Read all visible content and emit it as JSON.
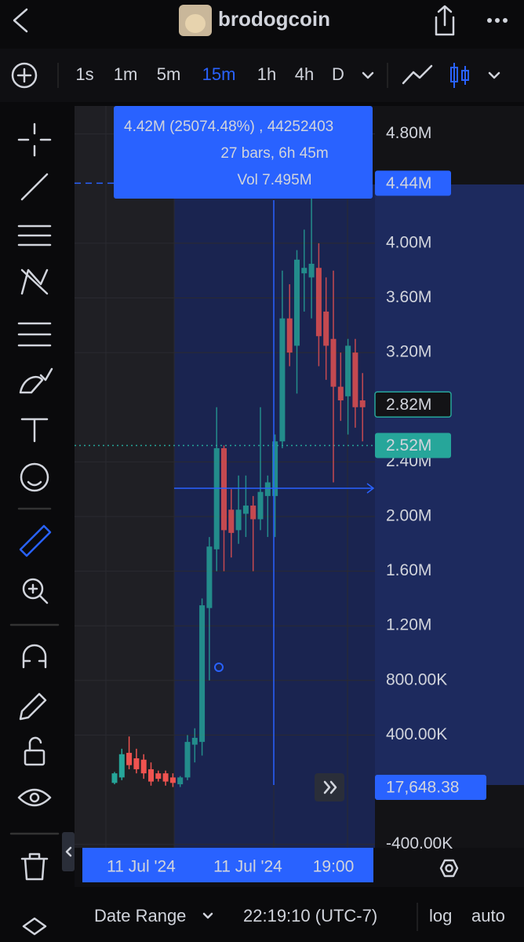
{
  "header": {
    "title": "brodogcoin"
  },
  "toolbar": {
    "intervals": [
      "1s",
      "1m",
      "5m",
      "15m",
      "1h",
      "4h",
      "D"
    ]
  },
  "chart_data": {
    "type": "candlestick",
    "ylim": [
      -425000,
      5005000
    ],
    "yticks": [
      {
        "value": -400000,
        "label": "-400.00K"
      },
      {
        "value": 400000,
        "label": "400.00K"
      },
      {
        "value": 800000,
        "label": "800.00K"
      },
      {
        "value": 1200000,
        "label": "1.20M"
      },
      {
        "value": 1600000,
        "label": "1.60M"
      },
      {
        "value": 2000000,
        "label": "2.00M"
      },
      {
        "value": 2400000,
        "label": "2.40M"
      },
      {
        "value": 3200000,
        "label": "3.20M"
      },
      {
        "value": 3600000,
        "label": "3.60M"
      },
      {
        "value": 4000000,
        "label": "4.00M"
      },
      {
        "value": 4800000,
        "label": "4.80M"
      }
    ],
    "up_color": "#26a69a",
    "down_color": "#ef5350",
    "open": [
      50000,
      90000,
      270000,
      230000,
      220000,
      150000,
      120000,
      120000,
      90000,
      40000,
      90000,
      330000,
      350000,
      1330000,
      1760000,
      2500000,
      2050000,
      1900000,
      2020000,
      2080000,
      1980000,
      2150000,
      2150000,
      2550000,
      3450000,
      3250000,
      3780000,
      3750000,
      3820000,
      3500000,
      3300000,
      2950000,
      2880000,
      3200000,
      2850000
    ],
    "high": [
      130000,
      300000,
      390000,
      300000,
      260000,
      200000,
      140000,
      140000,
      120000,
      100000,
      400000,
      450000,
      1400000,
      1850000,
      2800000,
      2520000,
      2200000,
      2300000,
      2300000,
      2150000,
      2800000,
      2300000,
      2600000,
      3800000,
      3700000,
      3950000,
      4100000,
      4420000,
      4000000,
      3750000,
      3800000,
      3200000,
      3300000,
      3300000,
      3050000
    ],
    "low": [
      40000,
      70000,
      150000,
      120000,
      80000,
      30000,
      60000,
      30000,
      20000,
      20000,
      70000,
      200000,
      250000,
      800000,
      1600000,
      1600000,
      1700000,
      1800000,
      1850000,
      1600000,
      1900000,
      1850000,
      1850000,
      2500000,
      3100000,
      2900000,
      3500000,
      3450000,
      3100000,
      3000000,
      2250000,
      2700000,
      2600000,
      2650000,
      2550000
    ],
    "close": [
      120000,
      260000,
      180000,
      150000,
      120000,
      60000,
      80000,
      60000,
      50000,
      90000,
      350000,
      380000,
      1350000,
      1780000,
      2500000,
      1900000,
      1880000,
      2050000,
      2080000,
      1980000,
      2180000,
      2250000,
      2550000,
      3450000,
      3200000,
      3880000,
      3820000,
      3850000,
      3320000,
      3250000,
      2950000,
      2850000,
      3250000,
      2800000,
      2800000
    ],
    "price_labels": [
      {
        "value": 4440000,
        "label": "4.44M"
      },
      {
        "value": 2820000,
        "label": "2.82M"
      },
      {
        "value": 2520000,
        "label": "2.52M"
      },
      {
        "value": 17648.38,
        "label": "17,648.38"
      }
    ],
    "measure": [
      "4.42M (25074.48%) , 44252403",
      "27 bars, 6h 45m",
      "Vol 7.495M"
    ],
    "x_labels": [
      "11 Jul '24",
      "11 Jul '24",
      "19:00"
    ]
  },
  "footer": {
    "date_range": "Date Range",
    "time": "22:19:10 (UTC-7)",
    "log": "log",
    "auto": "auto"
  }
}
